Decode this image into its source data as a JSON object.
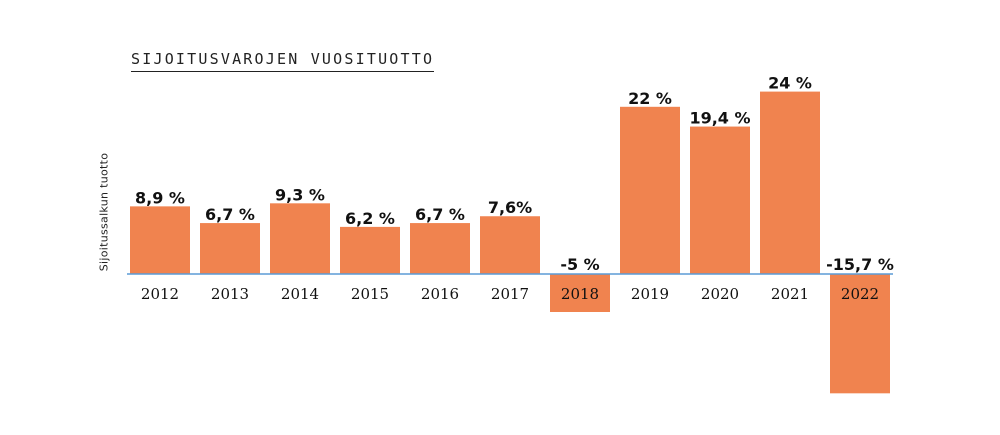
{
  "chart_data": {
    "type": "bar",
    "title": "SIJOITUSVAROJEN VUOSITUOTTO",
    "ylabel": "Sijoitussalkun tuotto",
    "xlabel": "",
    "categories": [
      "2012",
      "2013",
      "2014",
      "2015",
      "2016",
      "2017",
      "2018",
      "2019",
      "2020",
      "2021",
      "2022"
    ],
    "values": [
      8.9,
      6.7,
      9.3,
      6.2,
      6.7,
      7.6,
      -5,
      22,
      19.4,
      24,
      -15.7
    ],
    "data_labels": [
      "8,9 %",
      "6,7 %",
      "9,3 %",
      "6,2 %",
      "6,7 %",
      "7,6%",
      "-5 %",
      "22 %",
      "19,4 %",
      "24 %",
      "-15,7 %"
    ],
    "bar_color": "#f0834f",
    "baseline_color": "#5b9bd5",
    "grid": false
  }
}
